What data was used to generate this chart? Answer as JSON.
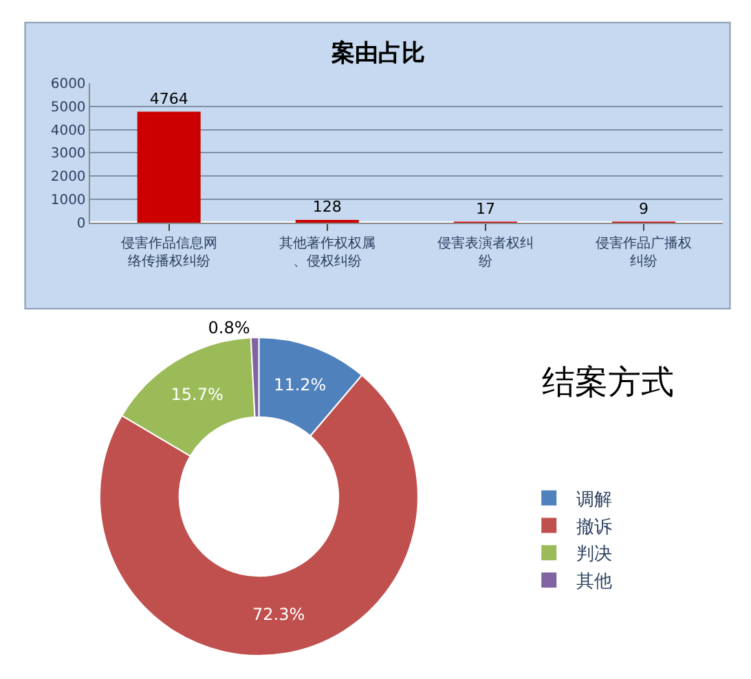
{
  "chart_data": [
    {
      "type": "bar",
      "title": "案由占比",
      "categories": [
        "侵害作品信息网络传播权纠纷",
        "其他著作权权属、侵权纠纷",
        "侵害表演者权纠纷",
        "侵害作品广播权纠纷"
      ],
      "values": [
        4764,
        128,
        17,
        9
      ],
      "color": "#cc0000",
      "ylim": [
        0,
        6000
      ],
      "yticks": [
        0,
        1000,
        2000,
        3000,
        4000,
        5000,
        6000
      ],
      "grid": "y",
      "data_labels": true,
      "legend": false
    },
    {
      "type": "donut",
      "title": "结案方式",
      "categories": [
        "调解",
        "撤诉",
        "判决",
        "其他"
      ],
      "values": [
        11.2,
        72.3,
        15.7,
        0.8
      ],
      "colors": [
        "#4f81bd",
        "#c0504d",
        "#9bbb59",
        "#8064a2"
      ],
      "value_labels": [
        "11.2%",
        "72.3%",
        "15.7%",
        "0.8%"
      ],
      "legend": "right"
    }
  ]
}
